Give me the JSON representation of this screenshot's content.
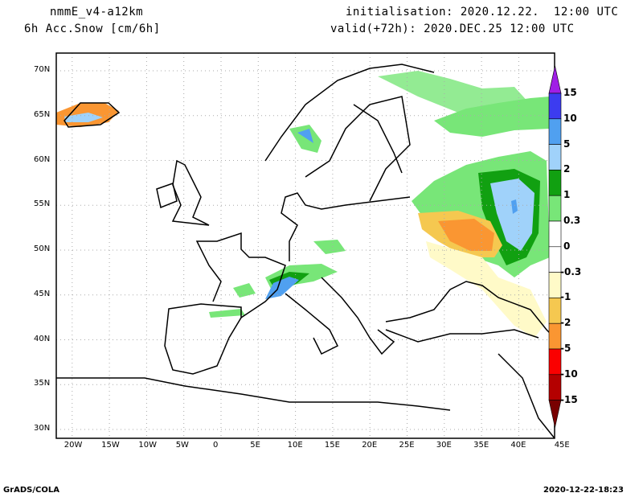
{
  "header": {
    "model": "nmmE_v4-a12km",
    "variable": "6h Acc.Snow [cm/6h]",
    "init": "initialisation: 2020.12.22.  12:00 UTC",
    "valid": "valid(+72h): 2020.DEC.25 12:00 UTC"
  },
  "map": {
    "lat_ticks": [
      "70N",
      "65N",
      "60N",
      "55N",
      "50N",
      "45N",
      "40N",
      "35N",
      "30N"
    ],
    "lon_ticks": [
      "20W",
      "15W",
      "10W",
      "5W",
      "0",
      "5E",
      "10E",
      "15E",
      "20E",
      "25E",
      "30E",
      "35E",
      "40E",
      "45E"
    ]
  },
  "colorbar": {
    "labels": [
      "15",
      "10",
      "5",
      "2",
      "1",
      "0.3",
      "0",
      "-0.3",
      "-1",
      "-2",
      "-5",
      "-10",
      "-15"
    ],
    "colors": [
      "#a01ee6",
      "#3c3cf0",
      "#50a0f0",
      "#a0d2fa",
      "#11a011",
      "#78e678",
      "#ffffff",
      "#ffffff",
      "#fffac8",
      "#f5c850",
      "#fa9632",
      "#fa0000",
      "#b40000",
      "#780000"
    ]
  },
  "footer": {
    "left": "GrADS/COLA",
    "right": "2020-12-22-18:23"
  }
}
